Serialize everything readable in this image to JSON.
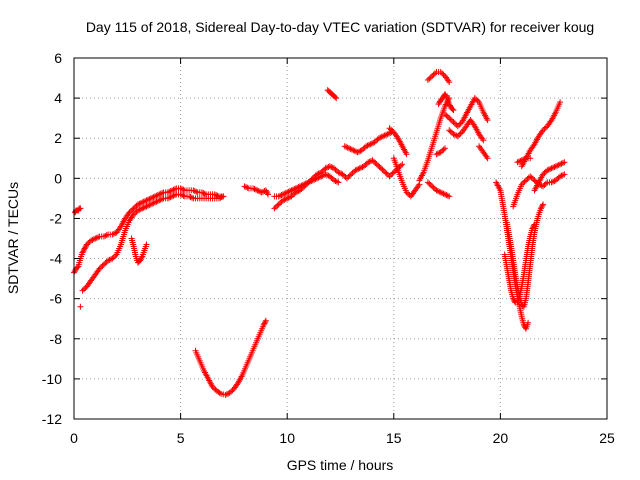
{
  "chart_data": {
    "type": "scatter",
    "title": "Day 115 of 2018, Sidereal Day-to-day VTEC variation (SDTVAR) for receiver koug",
    "xlabel": "GPS time / hours",
    "ylabel": "SDTVAR / TECUs",
    "xlim": [
      0,
      25
    ],
    "ylim": [
      -12,
      6
    ],
    "x_ticks": [
      "0",
      "5",
      "10",
      "15",
      "20",
      "25"
    ],
    "y_ticks": [
      "-12",
      "-10",
      "-8",
      "-6",
      "-4",
      "-2",
      "0",
      "2",
      "4",
      "6"
    ],
    "grid": true,
    "marker": "+",
    "color": "#ff0000",
    "series": [
      {
        "x": [
          0.0,
          0.1,
          0.2,
          0.3,
          0.4,
          0.5,
          0.6,
          0.8,
          1.0,
          1.2,
          1.4,
          1.6,
          1.8,
          2.0,
          2.2,
          2.4,
          2.6,
          2.8,
          3.0,
          3.2,
          3.4,
          3.6,
          3.8,
          4.0,
          4.2,
          4.4,
          4.6,
          4.8,
          5.0,
          5.2,
          5.4,
          5.6,
          5.8,
          6.0,
          6.2,
          6.4,
          6.6,
          6.8,
          7.0
        ],
        "y": [
          -4.7,
          -4.5,
          -4.4,
          -4.0,
          -3.7,
          -3.5,
          -3.3,
          -3.1,
          -3.0,
          -2.9,
          -2.9,
          -2.8,
          -2.8,
          -2.7,
          -2.4,
          -2.0,
          -1.7,
          -1.5,
          -1.3,
          -1.2,
          -1.1,
          -1.0,
          -0.9,
          -0.8,
          -0.7,
          -0.7,
          -0.6,
          -0.5,
          -0.5,
          -0.6,
          -0.6,
          -0.6,
          -0.7,
          -0.7,
          -0.8,
          -0.8,
          -0.8,
          -0.9,
          -0.9
        ]
      },
      {
        "x": [
          0.4,
          0.6,
          0.8,
          1.0,
          1.2,
          1.4,
          1.6,
          1.8,
          2.0,
          2.2,
          2.4,
          2.6,
          2.8,
          3.0,
          3.2,
          3.4,
          3.6,
          3.8,
          4.0,
          4.2,
          4.4,
          4.6,
          4.8,
          5.0,
          5.2,
          5.4,
          5.6,
          5.8,
          6.0,
          6.2,
          6.4,
          6.6,
          6.8,
          7.0
        ],
        "y": [
          -5.6,
          -5.4,
          -5.1,
          -4.8,
          -4.5,
          -4.3,
          -4.1,
          -4.0,
          -3.8,
          -3.3,
          -2.6,
          -2.1,
          -1.8,
          -1.6,
          -1.5,
          -1.4,
          -1.3,
          -1.2,
          -1.1,
          -1.0,
          -1.0,
          -0.9,
          -0.8,
          -0.8,
          -0.9,
          -0.9,
          -1.0,
          -1.0,
          -1.0,
          -1.0,
          -1.0,
          -1.0,
          -1.0,
          -0.9
        ]
      },
      {
        "x": [
          0.05,
          0.1,
          0.15,
          0.2,
          0.25,
          0.3
        ],
        "y": [
          -1.7,
          -1.6,
          -1.6,
          -1.6,
          -1.5,
          -1.5
        ]
      },
      {
        "x": [
          0.3
        ],
        "y": [
          -6.4
        ]
      },
      {
        "x": [
          2.7,
          2.8,
          2.9,
          3.0,
          3.1,
          3.2,
          3.3,
          3.4
        ],
        "y": [
          -3.0,
          -3.4,
          -3.9,
          -4.2,
          -4.1,
          -3.9,
          -3.6,
          -3.3
        ]
      },
      {
        "x": [
          5.7,
          5.9,
          6.1,
          6.3,
          6.5,
          6.7,
          6.9,
          7.1,
          7.3,
          7.5,
          7.7,
          7.9,
          8.1,
          8.3,
          8.5,
          8.7,
          8.9,
          9.0
        ],
        "y": [
          -8.6,
          -9.1,
          -9.6,
          -10.0,
          -10.4,
          -10.6,
          -10.75,
          -10.8,
          -10.7,
          -10.5,
          -10.2,
          -9.8,
          -9.3,
          -8.8,
          -8.3,
          -7.8,
          -7.3,
          -7.1
        ]
      },
      {
        "x": [
          8.0,
          8.2,
          8.4,
          8.6,
          8.8,
          9.0,
          9.1
        ],
        "y": [
          -0.4,
          -0.5,
          -0.5,
          -0.6,
          -0.7,
          -0.6,
          -0.8
        ]
      },
      {
        "x": [
          9.4,
          9.6,
          9.8,
          10.0,
          10.2,
          10.4,
          10.6,
          10.8,
          11.0,
          11.2,
          11.4,
          11.6,
          11.8,
          12.0,
          12.2,
          12.4,
          12.6,
          12.8,
          13.0,
          13.2,
          13.4,
          13.6,
          13.8,
          14.0,
          14.2,
          14.4,
          14.6,
          14.8,
          15.0,
          15.2,
          15.4
        ],
        "y": [
          -1.5,
          -1.3,
          -1.1,
          -1.0,
          -0.9,
          -0.7,
          -0.6,
          -0.4,
          -0.2,
          0.0,
          0.2,
          0.3,
          0.5,
          0.6,
          0.5,
          0.3,
          0.2,
          0.0,
          0.2,
          0.4,
          0.5,
          0.6,
          0.8,
          0.9,
          0.7,
          0.5,
          0.3,
          0.1,
          0.3,
          0.5,
          0.7
        ]
      },
      {
        "x": [
          9.4,
          9.6,
          9.8,
          10.0,
          10.2,
          10.4,
          10.6,
          10.8,
          11.0,
          11.2,
          11.4,
          11.6,
          11.8,
          12.0,
          12.2,
          12.4
        ],
        "y": [
          -0.9,
          -0.9,
          -0.8,
          -0.7,
          -0.6,
          -0.5,
          -0.4,
          -0.3,
          -0.2,
          -0.1,
          0.0,
          0.1,
          0.2,
          0.1,
          -0.1,
          -0.2
        ]
      },
      {
        "x": [
          11.9,
          12.0,
          12.1,
          12.2,
          12.3
        ],
        "y": [
          4.4,
          4.3,
          4.2,
          4.1,
          4.0
        ]
      },
      {
        "x": [
          12.7,
          12.9,
          13.1,
          13.3,
          13.5,
          13.7,
          13.9,
          14.1,
          14.3,
          14.5,
          14.7,
          14.9
        ],
        "y": [
          1.6,
          1.5,
          1.4,
          1.3,
          1.4,
          1.6,
          1.7,
          1.8,
          2.0,
          2.1,
          2.2,
          2.3
        ]
      },
      {
        "x": [
          14.8,
          15.0,
          15.2,
          15.4,
          15.6
        ],
        "y": [
          2.5,
          2.3,
          2.0,
          1.6,
          1.2
        ]
      },
      {
        "x": [
          15.0,
          15.2,
          15.4,
          15.6,
          15.8,
          16.0,
          16.2
        ],
        "y": [
          1.0,
          0.4,
          -0.2,
          -0.7,
          -0.9,
          -0.6,
          -0.3
        ]
      },
      {
        "x": [
          16.2,
          16.4,
          16.6,
          16.8,
          17.0,
          17.2,
          17.4,
          17.6
        ],
        "y": [
          -0.1,
          0.3,
          0.9,
          1.6,
          2.3,
          3.0,
          3.6,
          4.0
        ]
      },
      {
        "x": [
          16.6,
          16.8,
          17.0,
          17.2,
          17.4,
          17.6
        ],
        "y": [
          -0.2,
          -0.4,
          -0.6,
          -0.7,
          -0.8,
          -0.9
        ]
      },
      {
        "x": [
          16.6,
          16.8,
          17.0,
          17.2,
          17.4,
          17.6
        ],
        "y": [
          4.9,
          5.1,
          5.3,
          5.3,
          5.1,
          4.8
        ]
      },
      {
        "x": [
          17.1,
          17.2,
          17.3,
          17.4,
          17.5,
          17.6,
          17.7,
          17.8
        ],
        "y": [
          3.7,
          3.9,
          4.0,
          4.2,
          4.0,
          3.7,
          3.5,
          3.4
        ]
      },
      {
        "x": [
          17.4,
          17.6,
          17.8,
          18.0,
          18.2,
          18.4,
          18.6,
          18.8,
          19.0,
          19.2,
          19.4
        ],
        "y": [
          3.2,
          3.0,
          2.8,
          2.6,
          2.8,
          3.2,
          3.6,
          4.0,
          3.8,
          3.3,
          2.9
        ]
      },
      {
        "x": [
          17.6,
          17.8,
          18.0,
          18.2,
          18.4,
          18.6,
          18.8,
          19.0,
          19.2
        ],
        "y": [
          2.4,
          2.2,
          2.1,
          2.3,
          2.6,
          2.9,
          2.6,
          2.2,
          1.9
        ]
      },
      {
        "x": [
          19.0,
          19.2,
          19.4
        ],
        "y": [
          1.6,
          1.3,
          1.0
        ]
      },
      {
        "x": [
          17.0,
          17.2,
          17.4
        ],
        "y": [
          1.2,
          1.3,
          1.5
        ]
      },
      {
        "x": [
          19.8,
          20.0,
          20.1,
          20.2,
          20.3,
          20.4,
          20.5,
          20.6,
          20.7,
          20.8,
          20.9,
          21.0,
          21.1,
          21.2,
          21.3
        ],
        "y": [
          -0.2,
          -0.6,
          -1.2,
          -1.8,
          -2.5,
          -3.2,
          -3.9,
          -4.6,
          -5.3,
          -5.9,
          -6.4,
          -6.9,
          -7.3,
          -7.5,
          -7.2
        ]
      },
      {
        "x": [
          20.3,
          20.4,
          20.5,
          20.6,
          20.7,
          20.8,
          20.9,
          21.0,
          21.1,
          21.2,
          21.3,
          21.4,
          21.5,
          21.6,
          21.7,
          21.8,
          21.9,
          22.0
        ],
        "y": [
          -2.2,
          -2.8,
          -3.4,
          -4.1,
          -4.8,
          -5.4,
          -5.9,
          -6.3,
          -6.4,
          -6.0,
          -5.2,
          -4.3,
          -3.4,
          -2.7,
          -2.2,
          -1.8,
          -1.5,
          -1.3
        ]
      },
      {
        "x": [
          20.2,
          20.3,
          20.4,
          20.5,
          20.6,
          20.7,
          20.8,
          20.9,
          21.0,
          21.1,
          21.2,
          21.3,
          21.4,
          21.5,
          21.6
        ],
        "y": [
          -3.8,
          -4.4,
          -5.0,
          -5.6,
          -6.0,
          -6.2,
          -6.2,
          -5.9,
          -5.4,
          -4.8,
          -4.1,
          -3.4,
          -2.9,
          -2.5,
          -2.3
        ]
      },
      {
        "x": [
          20.6,
          20.8,
          21.0,
          21.2,
          21.4,
          21.6,
          21.8,
          22.0,
          22.2,
          22.4,
          22.6,
          22.8,
          23.0
        ],
        "y": [
          -1.4,
          -0.8,
          -0.3,
          -0.1,
          0.1,
          -0.1,
          -0.3,
          -0.4,
          -0.2,
          -0.2,
          -0.1,
          0.1,
          0.2
        ]
      },
      {
        "x": [
          21.0,
          21.2,
          21.4,
          21.6,
          21.8,
          22.0,
          22.2,
          22.4,
          22.6,
          22.8
        ],
        "y": [
          0.6,
          1.0,
          1.4,
          1.7,
          2.1,
          2.4,
          2.6,
          2.9,
          3.3,
          3.8
        ]
      },
      {
        "x": [
          21.6,
          21.8,
          22.0,
          22.2,
          22.4,
          22.6,
          22.8,
          23.0
        ],
        "y": [
          -0.6,
          -0.2,
          0.2,
          0.4,
          0.5,
          0.6,
          0.7,
          0.8
        ]
      },
      {
        "x": [
          20.8,
          21.0,
          21.2,
          21.4
        ],
        "y": [
          0.8,
          0.9,
          1.0,
          1.0
        ]
      }
    ]
  }
}
